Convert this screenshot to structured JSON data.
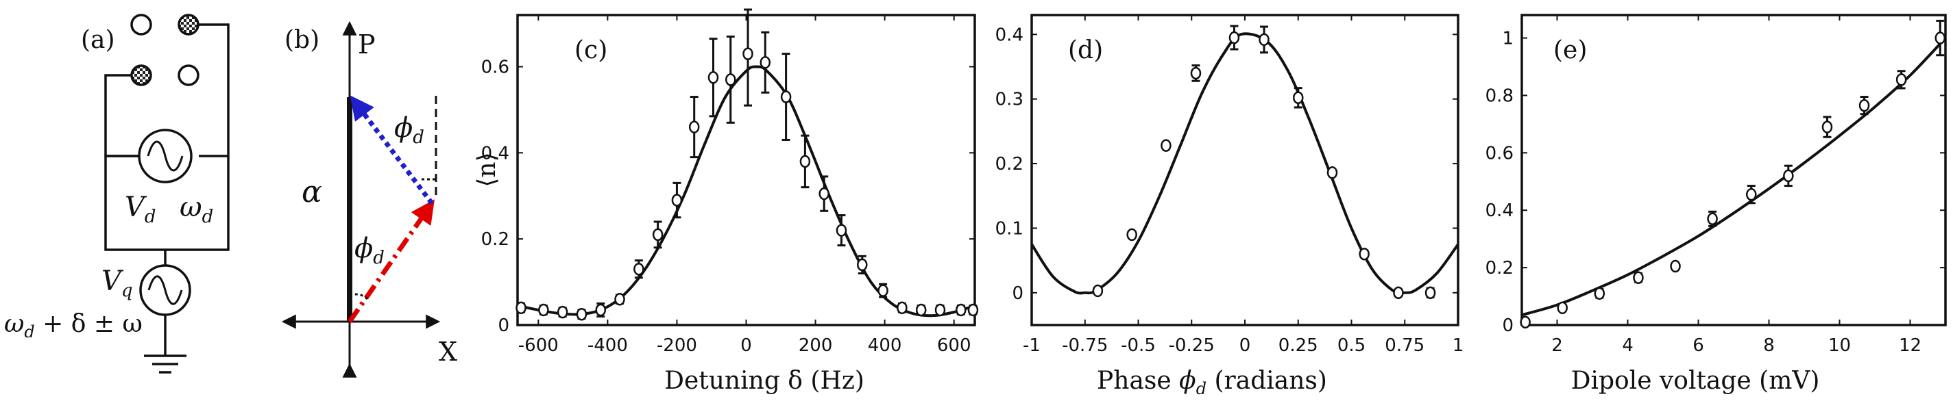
{
  "schematic": {
    "panel_label": "(a)",
    "source_d_labels": [
      "V",
      "d",
      "ω",
      "d"
    ],
    "source_q_labels": [
      "V",
      "q",
      "ω",
      "d",
      " + δ ± ω"
    ]
  },
  "phasor": {
    "panel_label": "(b)",
    "p_label": "P",
    "x_label": "X",
    "alpha_label": "α",
    "phi_upper_label": [
      "ϕ",
      "d"
    ],
    "phi_lower_label": [
      "ϕ",
      "d"
    ],
    "colors": {
      "blue_arrow": "#1f1fcc",
      "red_arrow": "#e00000",
      "black": "#111111"
    }
  },
  "chart_data": [
    {
      "panel_label": "(c)",
      "type": "scatter",
      "xlabel": "Detuning   δ (Hz)",
      "ylabel": "⟨n⟩",
      "xlim": [
        -660,
        660
      ],
      "ylim": [
        0,
        0.72
      ],
      "xticks": [
        "-600",
        "-400",
        "-200",
        "0",
        "200",
        "400",
        "600"
      ],
      "xtick_values": [
        -600,
        -400,
        -200,
        0,
        200,
        400,
        600
      ],
      "yticks": [
        "0",
        "0.2",
        "0.4",
        "0.6"
      ],
      "ytick_values": [
        0,
        0.2,
        0.4,
        0.6
      ],
      "points": {
        "x": [
          -650,
          -585,
          -530,
          -475,
          -420,
          -365,
          -310,
          -255,
          -200,
          -150,
          -95,
          -45,
          5,
          55,
          115,
          170,
          225,
          275,
          335,
          395,
          450,
          505,
          560,
          620,
          655
        ],
        "y": [
          0.04,
          0.035,
          0.03,
          0.025,
          0.035,
          0.06,
          0.13,
          0.21,
          0.29,
          0.46,
          0.575,
          0.57,
          0.63,
          0.61,
          0.53,
          0.38,
          0.305,
          0.22,
          0.14,
          0.08,
          0.04,
          0.035,
          0.035,
          0.035,
          0.035
        ],
        "err": [
          0.01,
          0.01,
          0.01,
          0.01,
          0.015,
          0.01,
          0.02,
          0.03,
          0.04,
          0.07,
          0.09,
          0.1,
          0.12,
          0.07,
          0.1,
          0.06,
          0.04,
          0.035,
          0.02,
          0.015,
          0.01,
          0.01,
          0.01,
          0.01,
          0.01
        ]
      },
      "fit": {
        "x": [
          -660,
          -600,
          -540,
          -480,
          -420,
          -360,
          -300,
          -240,
          -180,
          -120,
          -60,
          0,
          30,
          60,
          120,
          180,
          240,
          300,
          360,
          420,
          480,
          540,
          600,
          660
        ],
        "y": [
          0.045,
          0.035,
          0.027,
          0.025,
          0.035,
          0.065,
          0.12,
          0.2,
          0.3,
          0.42,
          0.53,
          0.59,
          0.6,
          0.59,
          0.53,
          0.42,
          0.3,
          0.19,
          0.1,
          0.05,
          0.027,
          0.022,
          0.03,
          0.045
        ]
      }
    },
    {
      "panel_label": "(d)",
      "type": "scatter",
      "xlabel": "Phase ϕd (radians)",
      "xlabel_parts": [
        "Phase ",
        "ϕ",
        "d",
        " (radians)"
      ],
      "ylabel": "",
      "xlim": [
        -1,
        1
      ],
      "ylim": [
        -0.05,
        0.43
      ],
      "xticks": [
        "-1",
        "-0.75",
        "-0.5",
        "-0.25",
        "0",
        "0.25",
        "0.5",
        "0.75",
        "1"
      ],
      "xtick_values": [
        -1,
        -0.75,
        -0.5,
        -0.25,
        0,
        0.25,
        0.5,
        0.75,
        1
      ],
      "yticks": [
        "0",
        "0.1",
        "0.2",
        "0.3",
        "0.4"
      ],
      "ytick_values": [
        0,
        0.1,
        0.2,
        0.3,
        0.4
      ],
      "points": {
        "x": [
          -0.69,
          -0.53,
          -0.37,
          -0.23,
          -0.05,
          0.09,
          0.25,
          0.41,
          0.56,
          0.72,
          0.87
        ],
        "y": [
          0.003,
          0.09,
          0.228,
          0.34,
          0.395,
          0.392,
          0.302,
          0.186,
          0.06,
          0.0,
          0.0
        ],
        "err": [
          0.005,
          0.005,
          0.005,
          0.012,
          0.018,
          0.02,
          0.015,
          0.005,
          0.005,
          0.005,
          0.007
        ]
      },
      "fit": {
        "x": [
          -1.0,
          -0.9,
          -0.8,
          -0.75,
          -0.7,
          -0.6,
          -0.5,
          -0.4,
          -0.3,
          -0.2,
          -0.1,
          -0.02,
          0.1,
          0.2,
          0.3,
          0.4,
          0.5,
          0.6,
          0.7,
          0.75,
          0.8,
          0.9,
          1.0
        ],
        "y": [
          0.075,
          0.025,
          0.002,
          0.0,
          0.003,
          0.03,
          0.08,
          0.15,
          0.23,
          0.31,
          0.37,
          0.4,
          0.39,
          0.345,
          0.27,
          0.185,
          0.1,
          0.035,
          0.002,
          0.0,
          0.004,
          0.03,
          0.075
        ]
      }
    },
    {
      "panel_label": "(e)",
      "type": "scatter",
      "xlabel": "Dipole voltage (mV)",
      "ylabel": "",
      "xlim": [
        1,
        13
      ],
      "ylim": [
        0,
        1.08
      ],
      "xticks": [
        "2",
        "4",
        "6",
        "8",
        "10",
        "12"
      ],
      "xtick_values": [
        2,
        4,
        6,
        8,
        10,
        12
      ],
      "yticks": [
        "0",
        "0.2",
        "0.4",
        "0.6",
        "0.8",
        "1"
      ],
      "ytick_values": [
        0,
        0.2,
        0.4,
        0.6,
        0.8,
        1
      ],
      "points": {
        "x": [
          1.1,
          2.15,
          3.2,
          4.3,
          5.35,
          6.4,
          7.5,
          8.55,
          9.65,
          10.7,
          11.75,
          12.85
        ],
        "y": [
          0.01,
          0.06,
          0.11,
          0.165,
          0.205,
          0.37,
          0.455,
          0.52,
          0.69,
          0.765,
          0.855,
          1.0
        ],
        "err": [
          0.005,
          0.01,
          0.015,
          0.015,
          0.01,
          0.025,
          0.03,
          0.035,
          0.035,
          0.03,
          0.03,
          0.06
        ]
      },
      "fit": {
        "x": [
          1,
          2,
          3,
          4,
          5,
          6,
          7,
          8,
          9,
          10,
          11,
          12,
          13
        ],
        "y": [
          0.035,
          0.07,
          0.12,
          0.175,
          0.24,
          0.31,
          0.39,
          0.475,
          0.565,
          0.66,
          0.76,
          0.87,
          1.0
        ]
      }
    }
  ]
}
